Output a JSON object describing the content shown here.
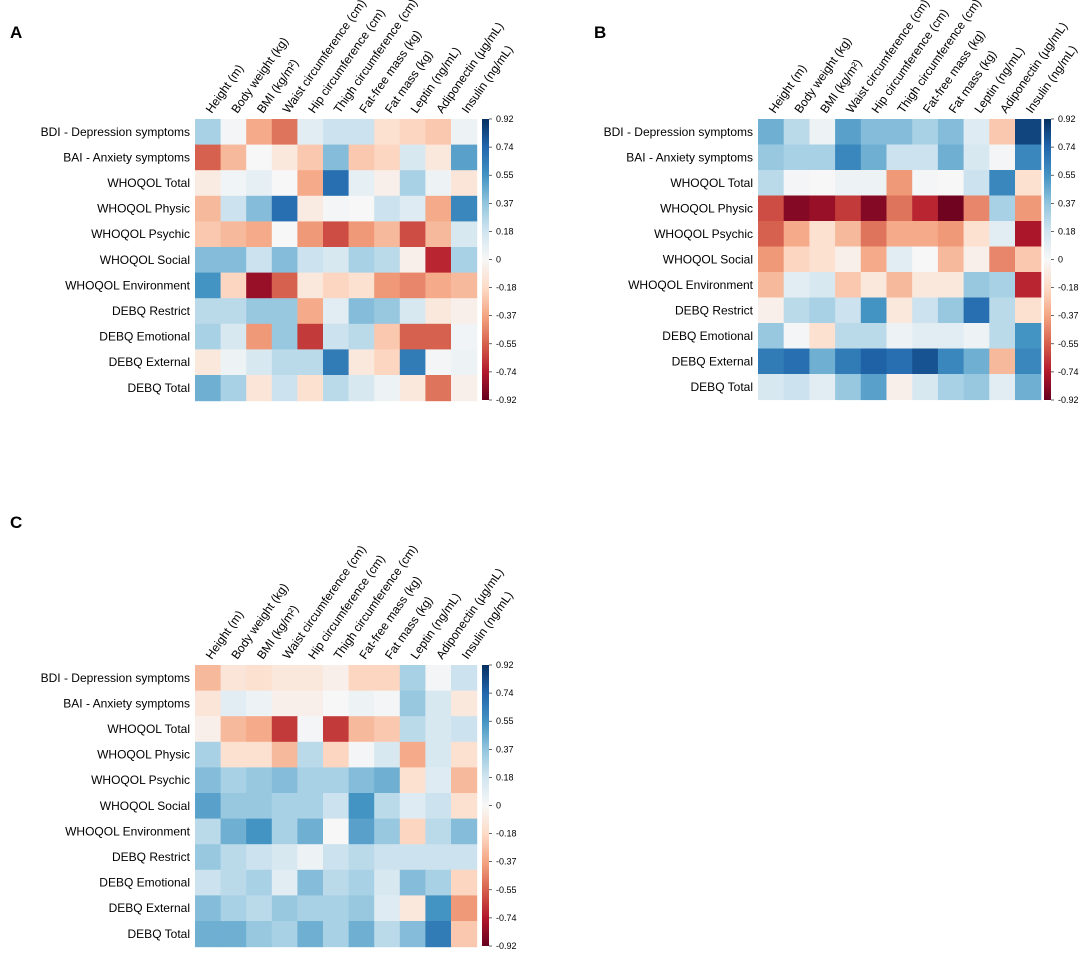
{
  "chart_data": [
    {
      "panel": "A",
      "type": "heatmap",
      "columns": [
        "Height (m)",
        "Body weight (kg)",
        "BMI (kg/m²)",
        "Waist circumference (cm)",
        "Hip circumference (cm)",
        "Thigh circumference (cm)",
        "Fat-free mass (kg)",
        "Fat mass (kg)",
        "Leptin (ng/mL)",
        "Adiponectin (µg/mL)",
        "Insulin (ng/mL)"
      ],
      "rows": [
        "BDI - Depression symptoms",
        "BAI - Anxiety symptoms",
        "WHOQOL Total",
        "WHOQOL Physic",
        "WHOQOL Psychic",
        "WHOQOL Social",
        "WHOQOL Environment",
        "DEBQ Restrict",
        "DEBQ Emotional",
        "DEBQ External",
        "DEBQ Total"
      ],
      "values": [
        [
          0.3,
          0.02,
          -0.35,
          -0.5,
          0.1,
          0.2,
          0.2,
          -0.15,
          -0.2,
          -0.25,
          0.05
        ],
        [
          -0.55,
          -0.3,
          0.0,
          -0.1,
          -0.25,
          0.4,
          -0.25,
          -0.2,
          0.15,
          -0.1,
          0.5
        ],
        [
          -0.08,
          0.03,
          0.08,
          0.0,
          -0.35,
          0.7,
          0.08,
          -0.05,
          0.3,
          0.05,
          -0.12
        ],
        [
          -0.3,
          0.2,
          0.4,
          0.7,
          -0.08,
          0.02,
          0.0,
          0.2,
          0.12,
          -0.35,
          0.6
        ],
        [
          -0.25,
          -0.3,
          -0.35,
          0.0,
          -0.4,
          -0.6,
          -0.4,
          -0.3,
          -0.6,
          -0.3,
          0.15
        ],
        [
          0.4,
          0.4,
          0.2,
          0.4,
          0.2,
          0.15,
          0.3,
          0.25,
          -0.05,
          -0.7,
          0.3
        ],
        [
          0.55,
          -0.2,
          -0.8,
          -0.55,
          -0.1,
          -0.2,
          -0.15,
          -0.4,
          -0.45,
          -0.35,
          -0.3
        ],
        [
          0.25,
          0.25,
          0.35,
          0.35,
          -0.35,
          0.1,
          0.4,
          0.35,
          0.15,
          -0.1,
          -0.05
        ],
        [
          0.3,
          0.15,
          -0.4,
          0.35,
          -0.65,
          0.2,
          0.25,
          -0.25,
          -0.55,
          -0.55,
          0.03
        ],
        [
          -0.1,
          0.05,
          0.15,
          0.25,
          0.25,
          0.65,
          -0.1,
          -0.2,
          0.65,
          0.02,
          0.05
        ],
        [
          0.45,
          0.3,
          -0.12,
          0.2,
          -0.15,
          0.25,
          0.15,
          0.05,
          -0.1,
          -0.5,
          -0.05
        ]
      ],
      "colorbar": {
        "ticks": [
          "0.92",
          "0.74",
          "0.55",
          "0.37",
          "0.18",
          "0",
          "-0.18",
          "-0.37",
          "-0.55",
          "-0.74",
          "-0.92"
        ],
        "range": [
          -0.92,
          0.92
        ]
      }
    },
    {
      "panel": "B",
      "type": "heatmap",
      "columns": [
        "Height (m)",
        "Body weight (kg)",
        "BMI (kg/m²)",
        "Waist circumference (cm)",
        "Hip circumference (cm)",
        "Thigh circumference (cm)",
        "Fat-free mass (kg)",
        "Fat mass (kg)",
        "Leptin (ng/mL)",
        "Adiponectin (µg/mL)",
        "Insulin (ng/mL)"
      ],
      "rows": [
        "BDI - Depression symptoms",
        "BAI - Anxiety symptoms",
        "WHOQOL Total",
        "WHOQOL Physic",
        "WHOQOL Psychic",
        "WHOQOL Social",
        "WHOQOL Environment",
        "DEBQ Restrict",
        "DEBQ Emotional",
        "DEBQ External",
        "DEBQ Total"
      ],
      "values": [
        [
          0.45,
          0.25,
          0.05,
          0.5,
          0.4,
          0.4,
          0.3,
          0.4,
          0.12,
          -0.25,
          0.85
        ],
        [
          0.35,
          0.3,
          0.3,
          0.6,
          0.45,
          0.2,
          0.2,
          0.45,
          0.15,
          0.02,
          0.6
        ],
        [
          0.25,
          0.02,
          0.0,
          0.05,
          0.05,
          -0.4,
          0.02,
          0.0,
          0.2,
          0.6,
          -0.15
        ],
        [
          -0.6,
          -0.85,
          -0.8,
          -0.65,
          -0.85,
          -0.5,
          -0.7,
          -0.9,
          -0.45,
          0.3,
          -0.4
        ],
        [
          -0.55,
          -0.35,
          -0.15,
          -0.3,
          -0.5,
          -0.35,
          -0.35,
          -0.4,
          -0.15,
          0.1,
          -0.75
        ],
        [
          -0.4,
          -0.2,
          -0.15,
          -0.05,
          -0.35,
          0.1,
          0.0,
          -0.3,
          -0.05,
          -0.45,
          -0.25
        ],
        [
          -0.3,
          0.1,
          0.15,
          -0.25,
          -0.1,
          -0.3,
          -0.1,
          -0.1,
          0.35,
          0.3,
          -0.7
        ],
        [
          -0.05,
          0.25,
          0.3,
          0.2,
          0.55,
          -0.1,
          0.2,
          0.35,
          0.7,
          0.25,
          -0.15
        ],
        [
          0.35,
          0.02,
          -0.15,
          0.25,
          0.25,
          0.05,
          0.1,
          0.1,
          0.05,
          0.25,
          0.55
        ],
        [
          0.65,
          0.7,
          0.45,
          0.65,
          0.75,
          0.7,
          0.8,
          0.6,
          0.45,
          -0.3,
          0.6
        ],
        [
          0.15,
          0.2,
          0.1,
          0.35,
          0.5,
          -0.05,
          0.15,
          0.3,
          0.35,
          0.1,
          0.45
        ]
      ],
      "colorbar": {
        "ticks": [
          "0.92",
          "0.74",
          "0.55",
          "0.37",
          "0.18",
          "0",
          "-0.18",
          "-0.37",
          "-0.55",
          "-0.74",
          "-0.92"
        ],
        "range": [
          -0.92,
          0.92
        ]
      }
    },
    {
      "panel": "C",
      "type": "heatmap",
      "columns": [
        "Height (m)",
        "Body weight (kg)",
        "BMI (kg/m²)",
        "Waist circumference (cm)",
        "Hip circumference (cm)",
        "Thigh circumference (cm)",
        "Fat-free mass (kg)",
        "Fat mass (kg)",
        "Leptin (ng/mL)",
        "Adiponectin (µg/mL)",
        "Insulin (ng/mL)"
      ],
      "rows": [
        "BDI - Depression symptoms",
        "BAI - Anxiety symptoms",
        "WHOQOL Total",
        "WHOQOL Physic",
        "WHOQOL Psychic",
        "WHOQOL Social",
        "WHOQOL Environment",
        "DEBQ Restrict",
        "DEBQ Emotional",
        "DEBQ External",
        "DEBQ Total"
      ],
      "values": [
        [
          -0.3,
          -0.12,
          -0.15,
          -0.1,
          -0.1,
          -0.05,
          -0.2,
          -0.2,
          0.3,
          0.02,
          0.2
        ],
        [
          -0.12,
          0.1,
          0.05,
          -0.05,
          -0.05,
          0.0,
          0.05,
          0.02,
          0.35,
          0.15,
          -0.1
        ],
        [
          -0.05,
          -0.3,
          -0.35,
          -0.65,
          0.02,
          -0.65,
          -0.3,
          -0.25,
          0.25,
          0.15,
          0.2
        ],
        [
          0.3,
          -0.15,
          -0.15,
          -0.3,
          0.25,
          -0.2,
          0.02,
          0.15,
          -0.35,
          0.15,
          -0.15
        ],
        [
          0.4,
          0.3,
          0.35,
          0.4,
          0.3,
          0.3,
          0.4,
          0.45,
          -0.15,
          0.12,
          -0.3
        ],
        [
          0.5,
          0.35,
          0.35,
          0.3,
          0.3,
          0.2,
          0.55,
          0.25,
          0.12,
          0.2,
          -0.15
        ],
        [
          0.25,
          0.45,
          0.55,
          0.3,
          0.45,
          0.0,
          0.5,
          0.35,
          -0.2,
          0.25,
          0.4
        ],
        [
          0.35,
          0.25,
          0.2,
          0.15,
          0.05,
          0.2,
          0.25,
          0.2,
          0.2,
          0.2,
          0.2
        ],
        [
          0.2,
          0.25,
          0.3,
          0.1,
          0.4,
          0.25,
          0.3,
          0.15,
          0.4,
          0.3,
          -0.2
        ],
        [
          0.4,
          0.3,
          0.25,
          0.35,
          0.3,
          0.3,
          0.35,
          0.12,
          -0.1,
          0.55,
          -0.4
        ],
        [
          0.45,
          0.45,
          0.35,
          0.3,
          0.45,
          0.3,
          0.45,
          0.25,
          0.4,
          0.65,
          -0.25
        ]
      ],
      "colorbar": {
        "ticks": [
          "0.92",
          "0.74",
          "0.55",
          "0.37",
          "0.18",
          "0",
          "-0.18",
          "-0.37",
          "-0.55",
          "-0.74",
          "-0.92"
        ],
        "range": [
          -0.92,
          0.92
        ]
      }
    }
  ]
}
